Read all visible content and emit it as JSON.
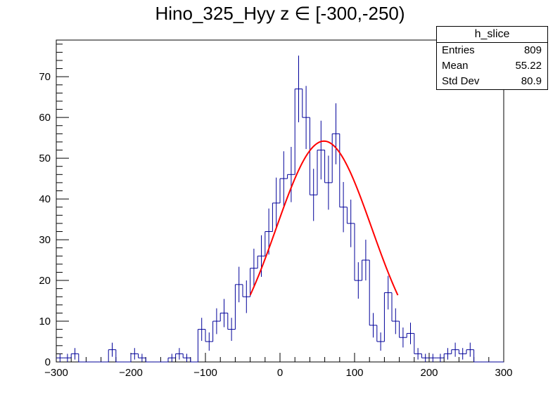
{
  "chart_data": {
    "type": "histogram",
    "title": "Hino_325_Hyy z  ∈ [-300,-250)",
    "xlim": [
      -300,
      300
    ],
    "ylim": [
      0,
      79
    ],
    "bin_width": 10,
    "x_ticks": [
      -300,
      -200,
      -100,
      0,
      100,
      200,
      300
    ],
    "y_ticks": [
      0,
      10,
      20,
      30,
      40,
      50,
      60,
      70
    ],
    "bin_low_edges": [
      -300,
      -290,
      -280,
      -270,
      -260,
      -250,
      -240,
      -230,
      -220,
      -210,
      -200,
      -190,
      -180,
      -170,
      -160,
      -150,
      -140,
      -130,
      -120,
      -110,
      -100,
      -90,
      -80,
      -70,
      -60,
      -50,
      -40,
      -30,
      -20,
      -10,
      0,
      10,
      20,
      30,
      40,
      50,
      60,
      70,
      80,
      90,
      100,
      110,
      120,
      130,
      140,
      150,
      160,
      170,
      180,
      190,
      200,
      210,
      220,
      230,
      240,
      250,
      260,
      270,
      280,
      290
    ],
    "counts": [
      1,
      1,
      2,
      0,
      0,
      0,
      0,
      3,
      0,
      0,
      2,
      1,
      0,
      0,
      0,
      1,
      2,
      1,
      0,
      8,
      5,
      10,
      12,
      8,
      19,
      16,
      23,
      26,
      32,
      39,
      45,
      46,
      67,
      60,
      41,
      52,
      44,
      56,
      38,
      34,
      20,
      25,
      9,
      5,
      17,
      10,
      6,
      7,
      2,
      1,
      1,
      1,
      2,
      3,
      2,
      3,
      0,
      0,
      0,
      0
    ],
    "errors": "sqrt(N)",
    "fit": {
      "type": "gaussian",
      "range": [
        -40,
        158
      ],
      "amplitude": 54.2,
      "mean": 59,
      "sigma": 64,
      "color": "#ff0000"
    },
    "hist_color": "#000099",
    "legend_position": "top-right",
    "stats": {
      "name": "h_slice",
      "rows": [
        {
          "label": "Entries",
          "value": "809"
        },
        {
          "label": "Mean",
          "value": "55.22"
        },
        {
          "label": "Std Dev",
          "value": "80.9"
        }
      ]
    }
  }
}
